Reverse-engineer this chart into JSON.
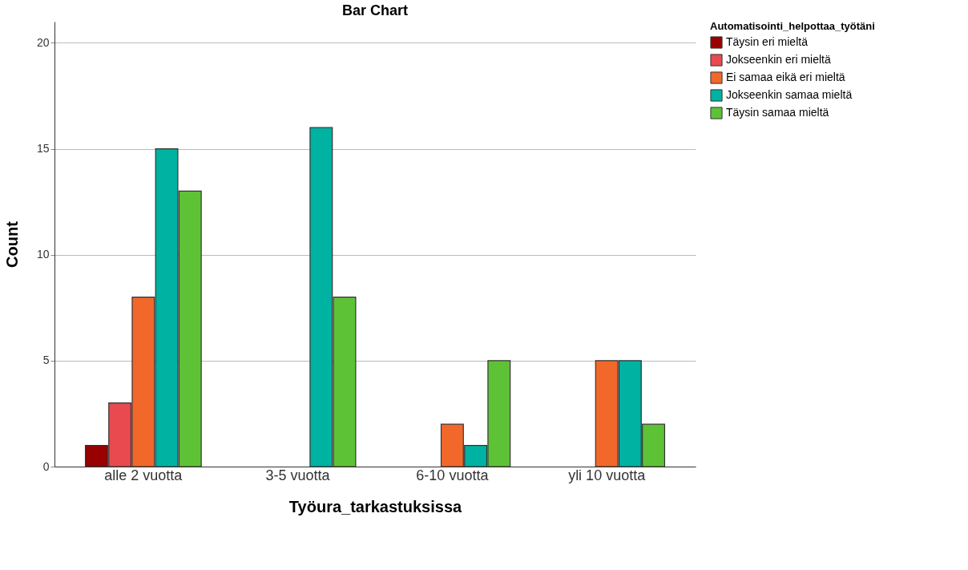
{
  "chart_data": {
    "type": "bar",
    "title": "Bar Chart",
    "xlabel": "Työura_tarkastuksissa",
    "ylabel": "Count",
    "legend_title": "Automatisointi_helpottaa_työtäni",
    "categories": [
      "alle 2 vuotta",
      "3-5 vuotta",
      "6-10 vuotta",
      "yli 10 vuotta"
    ],
    "series": [
      {
        "name": "Täysin eri mieltä",
        "color": "#990000",
        "values": [
          1,
          null,
          null,
          null
        ]
      },
      {
        "name": "Jokseenkin eri mieltä",
        "color": "#e84a4f",
        "values": [
          3,
          null,
          null,
          null
        ]
      },
      {
        "name": "Ei samaa eikä eri mieltä",
        "color": "#f2682a",
        "values": [
          8,
          null,
          2,
          5
        ]
      },
      {
        "name": "Jokseenkin samaa mieltä",
        "color": "#00b2a1",
        "values": [
          15,
          16,
          1,
          5
        ]
      },
      {
        "name": "Täysin samaa mieltä",
        "color": "#5ec236",
        "values": [
          13,
          8,
          5,
          2
        ]
      }
    ],
    "ylim": [
      0,
      21
    ],
    "yticks": [
      0,
      5,
      10,
      15,
      20
    ],
    "grid": "y",
    "legend": "top right"
  }
}
